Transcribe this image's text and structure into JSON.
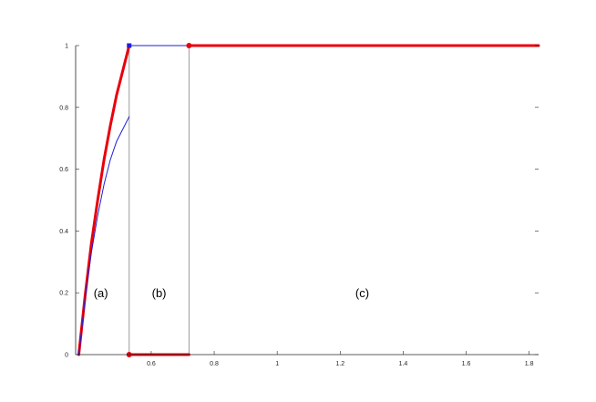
{
  "chart_data": {
    "type": "line",
    "title": "",
    "xlabel": "",
    "ylabel": "",
    "xlim": [
      0.36,
      1.83
    ],
    "ylim": [
      0,
      1
    ],
    "x_ticks": [
      0.6,
      0.8,
      1,
      1.2,
      1.4,
      1.6,
      1.8
    ],
    "x_tick_labels": [
      "0.6",
      "0.8",
      "1",
      "1.2",
      "1.4",
      "1.6",
      "1.8"
    ],
    "y_ticks": [
      0,
      0.2,
      0.4,
      0.6,
      0.8,
      1
    ],
    "y_tick_labels": [
      "0",
      "0.2",
      "0.4",
      "0.6",
      "0.8",
      "1"
    ],
    "grid": false,
    "colors": {
      "red": "#e8000b",
      "blue": "#1f1fd6",
      "divider": "#9a9a9a",
      "axis": "#262626"
    },
    "vertical_lines": [
      0.53,
      0.72
    ],
    "region_labels": [
      {
        "text": "(a)",
        "x": 0.44,
        "y": 0.2
      },
      {
        "text": "(b)",
        "x": 0.625,
        "y": 0.2
      },
      {
        "text": "(c)",
        "x": 1.27,
        "y": 0.2
      }
    ],
    "series": [
      {
        "color": "red",
        "width": 3,
        "x": [
          0.37,
          0.39,
          0.41,
          0.43,
          0.45,
          0.47,
          0.49,
          0.51,
          0.53
        ],
        "y": [
          0,
          0.19,
          0.36,
          0.5,
          0.63,
          0.74,
          0.84,
          0.92,
          1
        ]
      },
      {
        "color": "blue",
        "width": 1,
        "x": [
          0.37,
          0.39,
          0.41,
          0.43,
          0.45,
          0.47,
          0.49,
          0.51,
          0.53
        ],
        "y": [
          0,
          0.18,
          0.33,
          0.45,
          0.55,
          0.63,
          0.69,
          0.73,
          0.77
        ]
      },
      {
        "color": "blue",
        "width": 1,
        "x": [
          0.53,
          0.72
        ],
        "y": [
          1,
          1
        ]
      },
      {
        "color": "red",
        "width": 3,
        "x": [
          0.53,
          0.72
        ],
        "y": [
          0,
          0
        ]
      },
      {
        "color": "red",
        "width": 3,
        "x": [
          0.72,
          1.83
        ],
        "y": [
          1,
          1
        ]
      }
    ],
    "markers": [
      {
        "x": 0.53,
        "y": 1,
        "color": "blue",
        "shape": "square"
      },
      {
        "x": 0.53,
        "y": 0,
        "color": "red",
        "shape": "circle"
      },
      {
        "x": 0.72,
        "y": 1,
        "color": "red",
        "shape": "circle"
      }
    ]
  }
}
